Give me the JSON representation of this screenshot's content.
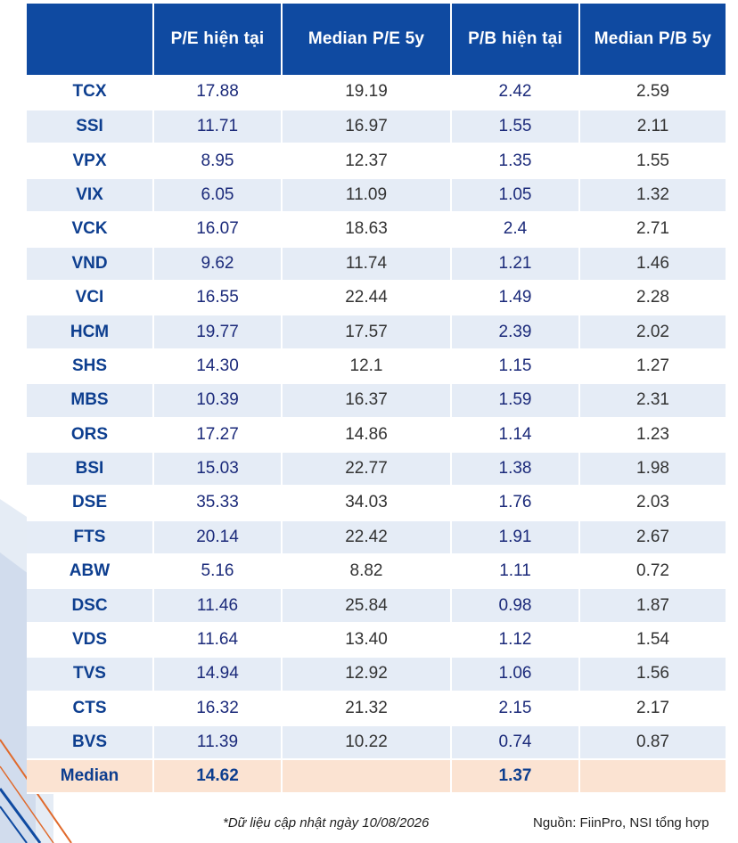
{
  "table": {
    "headers": [
      "",
      "P/E hiện tại",
      "Median P/E 5y",
      "P/B hiện tại",
      "Median P/B 5y"
    ],
    "rows": [
      [
        "TCX",
        "17.88",
        "19.19",
        "2.42",
        "2.59"
      ],
      [
        "SSI",
        "11.71",
        "16.97",
        "1.55",
        "2.11"
      ],
      [
        "VPX",
        "8.95",
        "12.37",
        "1.35",
        "1.55"
      ],
      [
        "VIX",
        "6.05",
        "11.09",
        "1.05",
        "1.32"
      ],
      [
        "VCK",
        "16.07",
        "18.63",
        "2.4",
        "2.71"
      ],
      [
        "VND",
        "9.62",
        "11.74",
        "1.21",
        "1.46"
      ],
      [
        "VCI",
        "16.55",
        "22.44",
        "1.49",
        "2.28"
      ],
      [
        "HCM",
        "19.77",
        "17.57",
        "2.39",
        "2.02"
      ],
      [
        "SHS",
        "14.30",
        "12.1",
        "1.15",
        "1.27"
      ],
      [
        "MBS",
        "10.39",
        "16.37",
        "1.59",
        "2.31"
      ],
      [
        "ORS",
        "17.27",
        "14.86",
        "1.14",
        "1.23"
      ],
      [
        "BSI",
        "15.03",
        "22.77",
        "1.38",
        "1.98"
      ],
      [
        "DSE",
        "35.33",
        "34.03",
        "1.76",
        "2.03"
      ],
      [
        "FTS",
        "20.14",
        "22.42",
        "1.91",
        "2.67"
      ],
      [
        "ABW",
        "5.16",
        "8.82",
        "1.11",
        "0.72"
      ],
      [
        "DSC",
        "11.46",
        "25.84",
        "0.98",
        "1.87"
      ],
      [
        "VDS",
        "11.64",
        "13.40",
        "1.12",
        "1.54"
      ],
      [
        "TVS",
        "14.94",
        "12.92",
        "1.06",
        "1.56"
      ],
      [
        "CTS",
        "16.32",
        "21.32",
        "2.15",
        "2.17"
      ],
      [
        "BVS",
        "11.39",
        "10.22",
        "0.74",
        "0.87"
      ]
    ],
    "median": [
      "Median",
      "14.62",
      "",
      "1.37",
      ""
    ]
  },
  "footer": {
    "note": "*Dữ liệu cập nhật ngày 10/08/2026",
    "source": "Nguồn: FiinPro, NSI tổng hợp"
  },
  "colors": {
    "header_bg": "#0f4aa1",
    "row_alt_bg": "#e5ecf6",
    "median_bg": "#fbe3d2",
    "name_text": "#0d3e8f"
  }
}
